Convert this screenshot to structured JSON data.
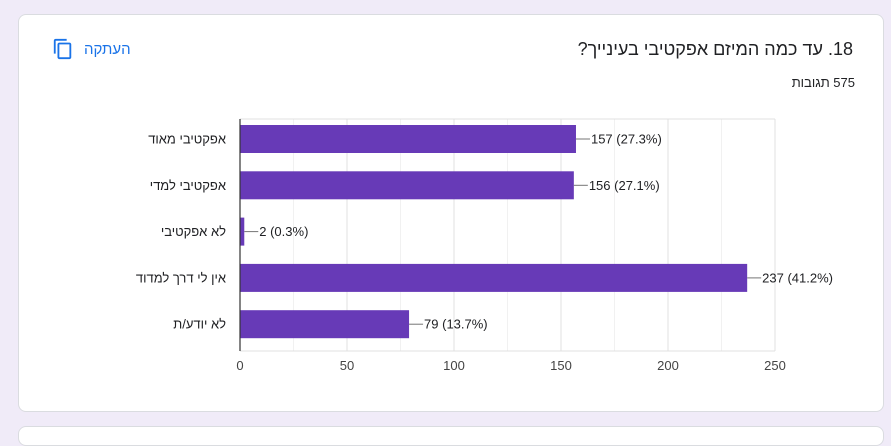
{
  "question": {
    "title": "18. עד כמה המיזם אפקטיבי בעינייך?",
    "responses": "575 תגובות"
  },
  "actions": {
    "copy_label": "העתקה",
    "copy_icon": "copy-icon"
  },
  "colors": {
    "bar": "#673ab7",
    "accent": "#1a73e8"
  },
  "chart_data": {
    "type": "bar",
    "orientation": "horizontal",
    "categories": [
      "אפקטיבי מאוד",
      "אפקטיבי למדי",
      "לא אפקטיבי",
      "אין לי דרך למדוד",
      "לא יודע/ת"
    ],
    "values": [
      157,
      156,
      2,
      237,
      79
    ],
    "data_labels": [
      "157 (27.3%)",
      "156 (27.1%)",
      "2 (0.3%)",
      "237 (41.2%)",
      "79 (13.7%)"
    ],
    "xlim": [
      0,
      250
    ],
    "xticks": [
      0,
      50,
      100,
      150,
      200,
      250
    ],
    "grid": true
  }
}
